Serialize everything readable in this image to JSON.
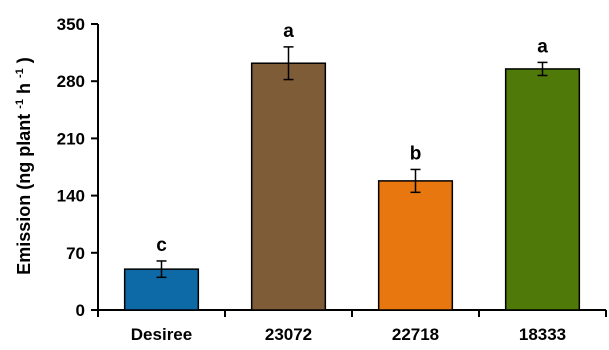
{
  "chart_data": {
    "type": "bar",
    "ylabel": "Emission (ng plant",
    "ylabel_sup1": "-1",
    "ylabel_mid": " h",
    "ylabel_sup2": "-1",
    "ylabel_end": ")",
    "xlabel": "",
    "ylim": [
      0,
      350
    ],
    "yticks": [
      0,
      70,
      140,
      210,
      280,
      350
    ],
    "grid": false,
    "categories": [
      "Desiree",
      "23072",
      "22718",
      "18333"
    ],
    "values": [
      50,
      302,
      158,
      295
    ],
    "errors": [
      10,
      20,
      14,
      8
    ],
    "significance": [
      "c",
      "a",
      "b",
      "a"
    ],
    "colors": [
      "#0e6aa6",
      "#7f5c38",
      "#e8770f",
      "#4f7a0a"
    ]
  }
}
